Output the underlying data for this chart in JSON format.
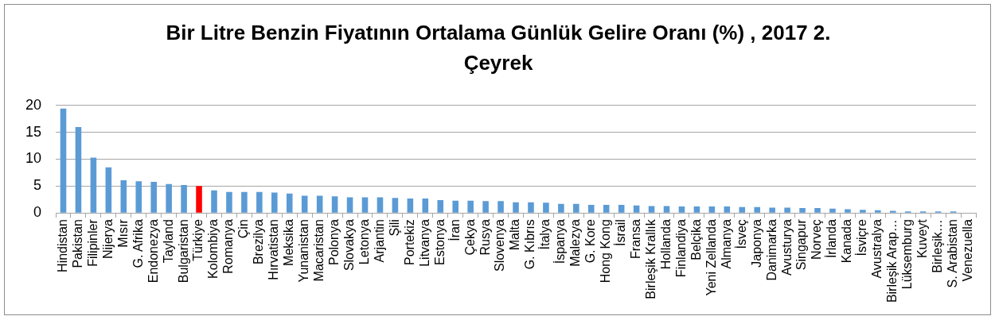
{
  "chart_data": {
    "type": "bar",
    "title": "Bir Litre Benzin Fiyatının Ortalama Günlük Gelire Oranı (%) , 2017 2. Çeyrek",
    "categories": [
      "Hindistan",
      "Pakistan",
      "Filipinler",
      "Nijerya",
      "Mısır",
      "G. Afrika",
      "Endonezya",
      "Tayland",
      "Bulgaristan",
      "Türkiye",
      "Kolombiya",
      "Romanya",
      "Çin",
      "Brezilya",
      "Hırvatistan",
      "Meksika",
      "Yunanistan",
      "Macaristan",
      "Polonya",
      "Slovakya",
      "Letonya",
      "Arjantin",
      "Şili",
      "Portekiz",
      "Litvanya",
      "Estonya",
      "İran",
      "Çekya",
      "Rusya",
      "Slovenya",
      "Malta",
      "G. Kıbrıs",
      "İtalya",
      "İspanya",
      "Malezya",
      "G. Kore",
      "Hong Kong",
      "İsrail",
      "Fransa",
      "Birleşik Krallık",
      "Hollanda",
      "Finlandiya",
      "Belçika",
      "Yeni Zellanda",
      "Almanya",
      "İsveç",
      "Japonya",
      "Danimarka",
      "Avusturya",
      "Singapur",
      "Norveç",
      "İrlanda",
      "Kanada",
      "İsviçre",
      "Avustralya",
      "Birleşik Arap…",
      "Lüksemburg",
      "Kuveyt",
      "Birleşik…",
      "S. Arabistan",
      "Venezuella"
    ],
    "values": [
      19.4,
      16.0,
      10.3,
      8.5,
      6.1,
      5.9,
      5.8,
      5.4,
      5.2,
      5.0,
      4.2,
      3.9,
      3.9,
      3.9,
      3.8,
      3.6,
      3.2,
      3.2,
      3.1,
      2.9,
      2.9,
      2.9,
      2.8,
      2.7,
      2.7,
      2.4,
      2.3,
      2.3,
      2.2,
      2.2,
      2.0,
      2.0,
      1.9,
      1.7,
      1.7,
      1.5,
      1.5,
      1.5,
      1.4,
      1.3,
      1.3,
      1.2,
      1.2,
      1.2,
      1.2,
      1.1,
      1.1,
      1.0,
      1.0,
      0.9,
      0.9,
      0.8,
      0.7,
      0.6,
      0.5,
      0.4,
      0.3,
      0.3,
      0.3,
      0.3,
      0
    ],
    "colors": [
      "#5b9bd5",
      "#5b9bd5",
      "#5b9bd5",
      "#5b9bd5",
      "#5b9bd5",
      "#5b9bd5",
      "#5b9bd5",
      "#5b9bd5",
      "#5b9bd5",
      "#ff0000",
      "#5b9bd5",
      "#5b9bd5",
      "#5b9bd5",
      "#5b9bd5",
      "#5b9bd5",
      "#5b9bd5",
      "#5b9bd5",
      "#5b9bd5",
      "#5b9bd5",
      "#5b9bd5",
      "#5b9bd5",
      "#5b9bd5",
      "#5b9bd5",
      "#5b9bd5",
      "#5b9bd5",
      "#5b9bd5",
      "#5b9bd5",
      "#5b9bd5",
      "#5b9bd5",
      "#5b9bd5",
      "#5b9bd5",
      "#5b9bd5",
      "#5b9bd5",
      "#5b9bd5",
      "#5b9bd5",
      "#5b9bd5",
      "#5b9bd5",
      "#5b9bd5",
      "#5b9bd5",
      "#5b9bd5",
      "#5b9bd5",
      "#5b9bd5",
      "#5b9bd5",
      "#5b9bd5",
      "#5b9bd5",
      "#5b9bd5",
      "#5b9bd5",
      "#5b9bd5",
      "#5b9bd5",
      "#5b9bd5",
      "#5b9bd5",
      "#5b9bd5",
      "#5b9bd5",
      "#5b9bd5",
      "#5b9bd5",
      "#5b9bd5",
      "#5b9bd5",
      "#5b9bd5",
      "#5b9bd5",
      "#5b9bd5",
      "#5b9bd5"
    ],
    "ylim": [
      0,
      20
    ],
    "yticks": [
      0,
      5,
      10,
      15,
      20
    ],
    "grid": "y"
  }
}
